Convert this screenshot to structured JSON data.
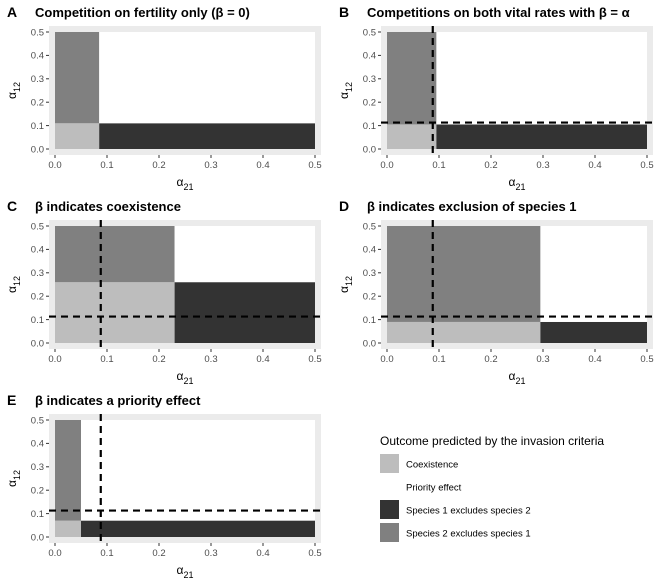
{
  "colors": {
    "coexistence": "#bdbdbd",
    "priority": "#ffffff",
    "sp1_excludes": "#333333",
    "sp2_excludes": "#808080",
    "panel_bg": "#ebebeb",
    "dashed": "#000000"
  },
  "legend": {
    "title": "Outcome predicted by the invasion criteria",
    "items": [
      {
        "key": "coexistence",
        "label": "Coexistence"
      },
      {
        "key": "priority",
        "label": "Priority effect"
      },
      {
        "key": "sp1_excludes",
        "label": "Species 1 excludes species 2"
      },
      {
        "key": "sp2_excludes",
        "label": "Species 2 excludes species 1"
      }
    ]
  },
  "chart_data": [
    {
      "type": "heatmap",
      "panel_letter": "A",
      "title": "Competition on fertility only (β = 0)",
      "xlabel": "α21",
      "ylabel": "α12",
      "xlim": [
        0,
        0.5
      ],
      "ylim": [
        0,
        0.5
      ],
      "x_ticks": [
        "0.0",
        "0.1",
        "0.2",
        "0.3",
        "0.4",
        "0.5"
      ],
      "y_ticks": [
        "0.0",
        "0.1",
        "0.2",
        "0.3",
        "0.4",
        "0.5"
      ],
      "boundaries": {
        "x": 0.085,
        "y": 0.11
      },
      "regions": [
        {
          "outcome": "coexistence",
          "x": [
            0,
            0.085
          ],
          "y": [
            0,
            0.11
          ]
        },
        {
          "outcome": "sp2_excludes",
          "x": [
            0,
            0.085
          ],
          "y": [
            0.11,
            0.5
          ]
        },
        {
          "outcome": "sp1_excludes",
          "x": [
            0.085,
            0.5
          ],
          "y": [
            0,
            0.11
          ]
        },
        {
          "outcome": "priority",
          "x": [
            0.085,
            0.5
          ],
          "y": [
            0.11,
            0.5
          ]
        }
      ],
      "dashed_lines": null
    },
    {
      "type": "heatmap",
      "panel_letter": "B",
      "title": "Competitions on both vital rates with β = α",
      "xlabel": "α21",
      "ylabel": "α12",
      "xlim": [
        0,
        0.5
      ],
      "ylim": [
        0,
        0.5
      ],
      "x_ticks": [
        "0.0",
        "0.1",
        "0.2",
        "0.3",
        "0.4",
        "0.5"
      ],
      "y_ticks": [
        "0.0",
        "0.1",
        "0.2",
        "0.3",
        "0.4",
        "0.5"
      ],
      "boundaries": {
        "x": 0.095,
        "y": 0.105
      },
      "regions": [
        {
          "outcome": "coexistence",
          "x": [
            0,
            0.095
          ],
          "y": [
            0,
            0.105
          ]
        },
        {
          "outcome": "sp2_excludes",
          "x": [
            0,
            0.095
          ],
          "y": [
            0.105,
            0.5
          ]
        },
        {
          "outcome": "sp1_excludes",
          "x": [
            0.095,
            0.5
          ],
          "y": [
            0,
            0.105
          ]
        },
        {
          "outcome": "priority",
          "x": [
            0.095,
            0.5
          ],
          "y": [
            0.105,
            0.5
          ]
        }
      ],
      "dashed_lines": {
        "x": 0.088,
        "y": 0.113
      }
    },
    {
      "type": "heatmap",
      "panel_letter": "C",
      "title": "β indicates coexistence",
      "xlabel": "α21",
      "ylabel": "α12",
      "xlim": [
        0,
        0.5
      ],
      "ylim": [
        0,
        0.5
      ],
      "x_ticks": [
        "0.0",
        "0.1",
        "0.2",
        "0.3",
        "0.4",
        "0.5"
      ],
      "y_ticks": [
        "0.0",
        "0.1",
        "0.2",
        "0.3",
        "0.4",
        "0.5"
      ],
      "boundaries": {
        "x": 0.23,
        "y": 0.26
      },
      "regions": [
        {
          "outcome": "coexistence",
          "x": [
            0,
            0.23
          ],
          "y": [
            0,
            0.26
          ]
        },
        {
          "outcome": "sp2_excludes",
          "x": [
            0,
            0.23
          ],
          "y": [
            0.26,
            0.5
          ]
        },
        {
          "outcome": "sp1_excludes",
          "x": [
            0.23,
            0.5
          ],
          "y": [
            0,
            0.26
          ]
        },
        {
          "outcome": "priority",
          "x": [
            0.23,
            0.5
          ],
          "y": [
            0.26,
            0.5
          ]
        }
      ],
      "dashed_lines": {
        "x": 0.088,
        "y": 0.113
      }
    },
    {
      "type": "heatmap",
      "panel_letter": "D",
      "title": "β indicates exclusion of species 1",
      "xlabel": "α21",
      "ylabel": "α12",
      "xlim": [
        0,
        0.5
      ],
      "ylim": [
        0,
        0.5
      ],
      "x_ticks": [
        "0.0",
        "0.1",
        "0.2",
        "0.3",
        "0.4",
        "0.5"
      ],
      "y_ticks": [
        "0.0",
        "0.1",
        "0.2",
        "0.3",
        "0.4",
        "0.5"
      ],
      "boundaries": {
        "x": 0.295,
        "y": 0.09
      },
      "regions": [
        {
          "outcome": "coexistence",
          "x": [
            0,
            0.295
          ],
          "y": [
            0,
            0.09
          ]
        },
        {
          "outcome": "sp2_excludes",
          "x": [
            0,
            0.295
          ],
          "y": [
            0.09,
            0.5
          ]
        },
        {
          "outcome": "sp1_excludes",
          "x": [
            0.295,
            0.5
          ],
          "y": [
            0,
            0.09
          ]
        },
        {
          "outcome": "priority",
          "x": [
            0.295,
            0.5
          ],
          "y": [
            0.09,
            0.5
          ]
        }
      ],
      "dashed_lines": {
        "x": 0.088,
        "y": 0.113
      }
    },
    {
      "type": "heatmap",
      "panel_letter": "E",
      "title": "β indicates a priority effect",
      "xlabel": "α21",
      "ylabel": "α12",
      "xlim": [
        0,
        0.5
      ],
      "ylim": [
        0,
        0.5
      ],
      "x_ticks": [
        "0.0",
        "0.1",
        "0.2",
        "0.3",
        "0.4",
        "0.5"
      ],
      "y_ticks": [
        "0.0",
        "0.1",
        "0.2",
        "0.3",
        "0.4",
        "0.5"
      ],
      "boundaries": {
        "x": 0.05,
        "y": 0.07
      },
      "regions": [
        {
          "outcome": "coexistence",
          "x": [
            0,
            0.05
          ],
          "y": [
            0,
            0.07
          ]
        },
        {
          "outcome": "sp2_excludes",
          "x": [
            0,
            0.05
          ],
          "y": [
            0.07,
            0.5
          ]
        },
        {
          "outcome": "sp1_excludes",
          "x": [
            0.05,
            0.5
          ],
          "y": [
            0,
            0.07
          ]
        },
        {
          "outcome": "priority",
          "x": [
            0.05,
            0.5
          ],
          "y": [
            0.07,
            0.5
          ]
        }
      ],
      "dashed_lines": {
        "x": 0.088,
        "y": 0.113
      }
    }
  ]
}
